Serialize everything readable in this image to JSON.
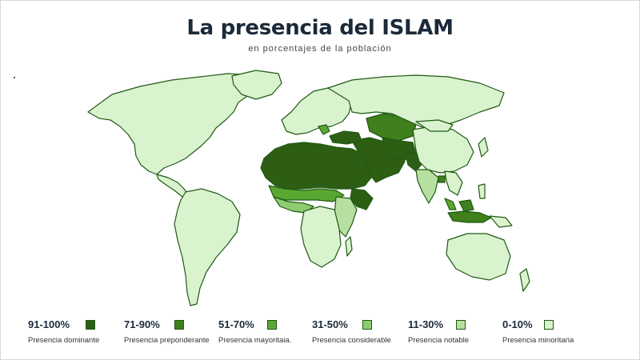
{
  "title": "La presencia del ISLAM",
  "subtitle": "en porcentajes de la población",
  "colors": {
    "c91_100": "#2e5e14",
    "c71_90": "#3f7f1c",
    "c51_70": "#5aa632",
    "c31_50": "#8ecd6f",
    "c11_30": "#b7e0a0",
    "c0_10": "#daf3cf",
    "border": "#1f5a14"
  },
  "legend": [
    {
      "range": "91-100%",
      "label": "Presencia dominante",
      "color": "#2e5e14"
    },
    {
      "range": "71-90%",
      "label": "Presencia preponderante",
      "color": "#3f7f1c"
    },
    {
      "range": "51-70%",
      "label": "Presencia mayoritaia.",
      "color": "#5aa632"
    },
    {
      "range": "31-50%",
      "label": "Presencia considerable",
      "color": "#8ecd6f"
    },
    {
      "range": "11-30%",
      "label": "Presencia notable",
      "color": "#b7e0a0"
    },
    {
      "range": "0-10%",
      "label": "Presencia minoritaria",
      "color": "#daf3cf"
    }
  ]
}
